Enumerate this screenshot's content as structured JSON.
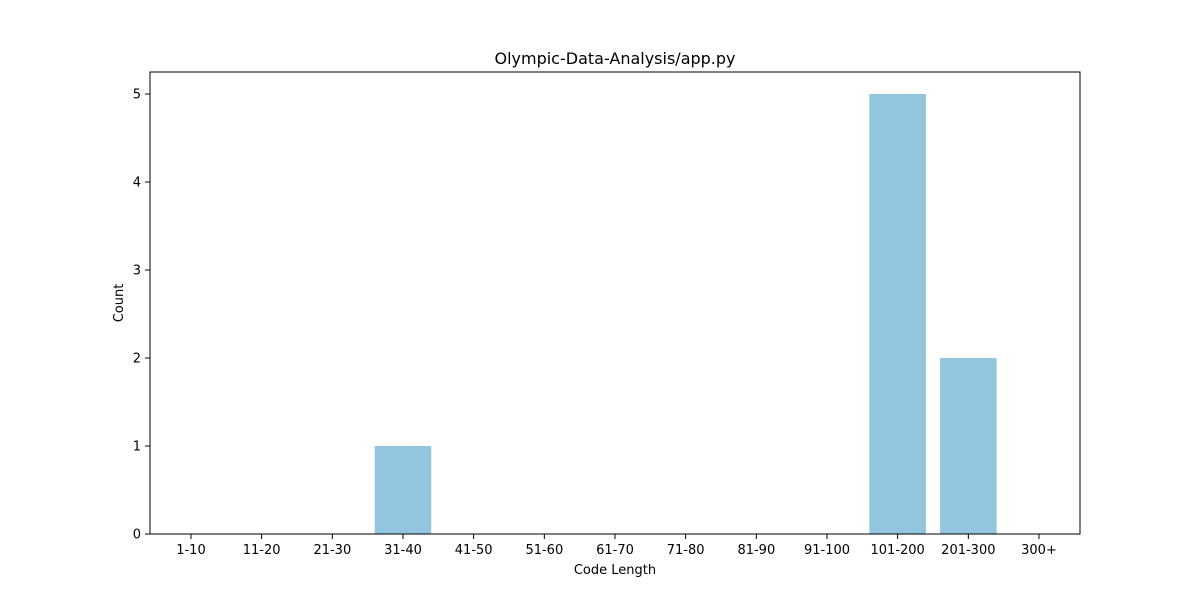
{
  "chart_data": {
    "type": "bar",
    "title": "Olympic-Data-Analysis/app.py",
    "xlabel": "Code Length",
    "ylabel": "Count",
    "categories": [
      "1-10",
      "11-20",
      "21-30",
      "31-40",
      "41-50",
      "51-60",
      "61-70",
      "71-80",
      "81-90",
      "91-100",
      "101-200",
      "201-300",
      "300+"
    ],
    "values": [
      0,
      0,
      0,
      1,
      0,
      0,
      0,
      0,
      0,
      0,
      5,
      2,
      0
    ],
    "ylim": [
      0,
      5.25
    ],
    "yticks": [
      0,
      1,
      2,
      3,
      4,
      5
    ],
    "grid": false,
    "legend": "none",
    "bar_color": "#92c5de"
  }
}
